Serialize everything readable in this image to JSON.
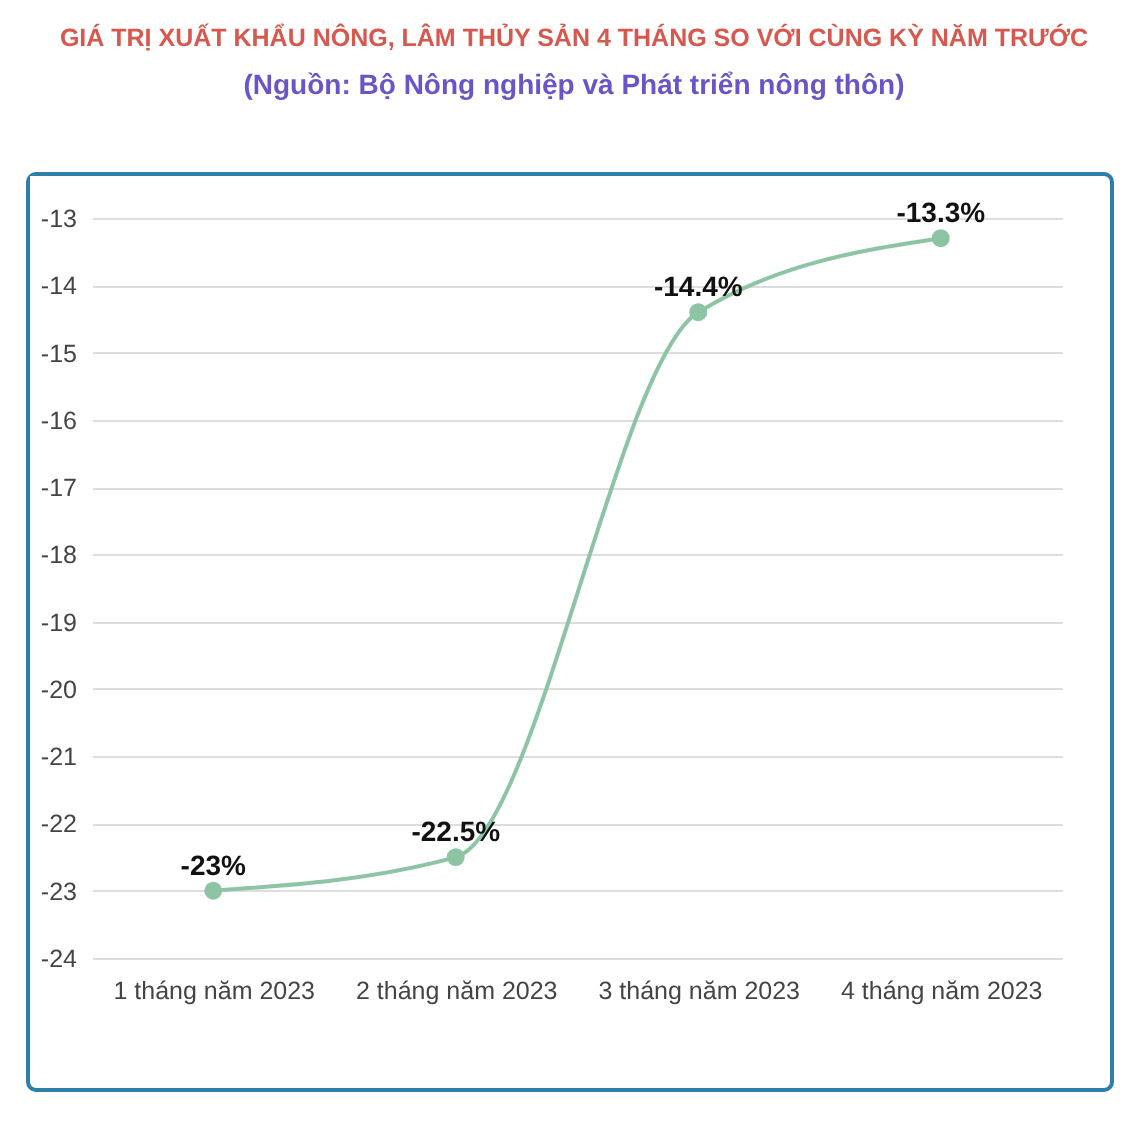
{
  "chart_data": {
    "type": "line",
    "title": "GIÁ TRỊ XUẤT KHẨU NÔNG, LÂM THỦY SẢN 4 THÁNG SO VỚI CÙNG KỲ NĂM TRƯỚC",
    "subtitle": "(Nguồn: Bộ Nông nghiệp và Phát triển nông thôn)",
    "categories": [
      "1 tháng năm 2023",
      "2 tháng năm 2023",
      "3 tháng năm 2023",
      "4 tháng năm 2023"
    ],
    "series": [
      {
        "color": "#8cc4a4",
        "values": [
          -23,
          -22.5,
          -14.4,
          -13.3
        ],
        "value_labels": [
          "-23%",
          "-22.5%",
          "-14.4%",
          "-13.3%"
        ]
      }
    ],
    "ylim": [
      -24,
      -13
    ],
    "yticks": [
      -24,
      -23,
      -22,
      -21,
      -20,
      -19,
      -18,
      -17,
      -16,
      -15,
      -14,
      -13
    ],
    "grid": "y",
    "marker": "circle",
    "line_style": "solid"
  }
}
